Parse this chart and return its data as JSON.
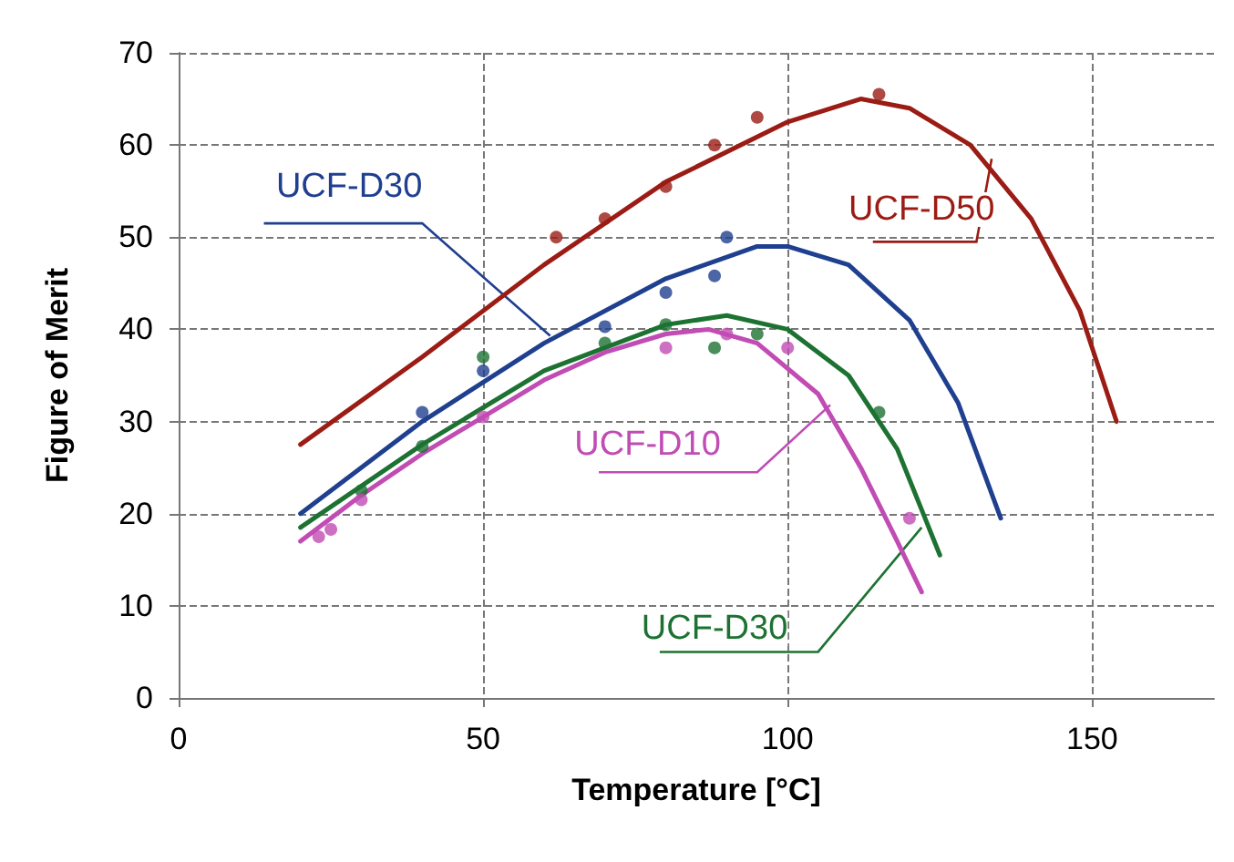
{
  "chart_data": {
    "type": "line",
    "xlabel": "Temperature [°C]",
    "ylabel": "Figure of Merit",
    "xlim": [
      0,
      170
    ],
    "xticks": [
      0,
      50,
      100,
      150
    ],
    "ylim": [
      0,
      70
    ],
    "yticks": [
      0,
      10,
      20,
      30,
      40,
      50,
      60,
      70
    ],
    "grid": true,
    "legend": false,
    "marker": "none",
    "line_style": "solid",
    "series": [
      {
        "name": "UCF-D50",
        "color": "#9b1c14",
        "x": [
          20,
          40,
          60,
          80,
          100,
          112,
          120,
          130,
          140,
          148,
          154
        ],
        "values": [
          27.5,
          37,
          47,
          56,
          62.5,
          65,
          64,
          60,
          52,
          42,
          30
        ]
      },
      {
        "name": "UCF-D30",
        "color": "#1f3f8f",
        "x": [
          20,
          40,
          60,
          80,
          95,
          100,
          110,
          120,
          128,
          135
        ],
        "values": [
          20,
          30,
          38.5,
          45.5,
          49,
          49,
          47,
          41,
          32,
          19.5
        ]
      },
      {
        "name": "UCF-D30",
        "color": "#1d7232",
        "x": [
          20,
          40,
          60,
          80,
          90,
          100,
          110,
          118,
          125
        ],
        "values": [
          18.5,
          27.5,
          35.5,
          40.5,
          41.5,
          40,
          35,
          27,
          15.5
        ]
      },
      {
        "name": "UCF-D10",
        "color": "#c04cb4",
        "x": [
          20,
          30,
          40,
          50,
          60,
          70,
          80,
          87,
          95,
          105,
          112,
          118,
          122
        ],
        "values": [
          17,
          22,
          26.5,
          30.5,
          34.5,
          37.5,
          39.5,
          40,
          38.5,
          33,
          25,
          17,
          11.5
        ]
      },
      {
        "type": "scatter",
        "marker": "circle",
        "color": "#9b1c14",
        "x": [
          62,
          70,
          80,
          88,
          95,
          115
        ],
        "values": [
          50,
          52,
          55.5,
          60,
          63,
          65.5
        ]
      },
      {
        "type": "scatter",
        "marker": "circle",
        "color": "#1f3f8f",
        "x": [
          40,
          50,
          70,
          80,
          88,
          90
        ],
        "values": [
          31,
          35.5,
          40.3,
          44,
          45.8,
          50
        ]
      },
      {
        "type": "scatter",
        "marker": "circle",
        "color": "#1d7232",
        "x": [
          30,
          40,
          50,
          70,
          80,
          88,
          95,
          115
        ],
        "values": [
          22.5,
          27.3,
          37,
          38.5,
          40.5,
          38,
          39.5,
          31
        ]
      },
      {
        "type": "scatter",
        "marker": "circle",
        "color": "#c04cb4",
        "x": [
          23,
          25,
          30,
          50,
          80,
          90,
          100,
          120
        ],
        "values": [
          17.5,
          18.3,
          21.5,
          30.5,
          38,
          39.5,
          38,
          19.5
        ]
      }
    ]
  }
}
